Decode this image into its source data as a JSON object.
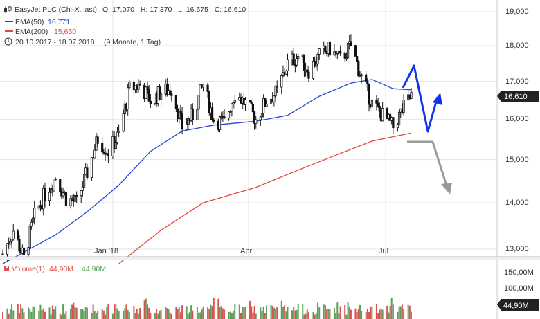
{
  "header": {
    "title": "EasyJet PLC (Chi-X, last)",
    "ohlc": "O: 17,070   H: 17,370   L: 16,575   C: 16,610",
    "ema50_label": "EMA(50)",
    "ema50_value": "16,771",
    "ema200_label": "EMA(200)",
    "ema200_value": "15,650",
    "range": "20.10.2017 - 18.07.2018",
    "period": "(9 Monate, 1 Tag)"
  },
  "price_axis": {
    "ticks": [
      "19,000",
      "18,000",
      "17,000",
      "16,000",
      "15,000",
      "14,000",
      "13,000"
    ],
    "last_badge": "16,610"
  },
  "time_axis": {
    "ticks": [
      "Jan '18",
      "Apr",
      "Jul"
    ]
  },
  "volume": {
    "label": "Volume(1)",
    "value_red": "44,90M",
    "value_green": "44,90M",
    "ticks": [
      "150,00M",
      "100,00M"
    ],
    "last_badge": "44,90M"
  },
  "colors": {
    "candle": "#111111",
    "ema50": "#2545d6",
    "ema200": "#e0473a",
    "arrow_blue": "#1133ee",
    "arrow_gray": "#999999",
    "vol_up": "#5aa05a",
    "vol_down": "#d9534f",
    "badge": "#222222",
    "grid": "#e6e6e6"
  },
  "chart_data": {
    "type": "candlestick",
    "title": "EasyJet PLC (Chi-X, last)",
    "x_range": [
      "2017-10-20",
      "2018-07-18"
    ],
    "ylim": [
      12700,
      19200
    ],
    "y_scale": "log",
    "grid": true,
    "price_path": [
      [
        "2017-10-20",
        12900
      ],
      [
        "2017-10-27",
        13400
      ],
      [
        "2017-11-03",
        12800
      ],
      [
        "2017-11-10",
        13700
      ],
      [
        "2017-11-17",
        14200
      ],
      [
        "2017-11-24",
        14600
      ],
      [
        "2017-12-01",
        14100
      ],
      [
        "2017-12-08",
        14000
      ],
      [
        "2017-12-15",
        14700
      ],
      [
        "2017-12-22",
        15500
      ],
      [
        "2017-12-29",
        15200
      ],
      [
        "2018-01-05",
        15600
      ],
      [
        "2018-01-12",
        16800
      ],
      [
        "2018-01-19",
        16900
      ],
      [
        "2018-01-26",
        16500
      ],
      [
        "2018-02-02",
        16700
      ],
      [
        "2018-02-09",
        16800
      ],
      [
        "2018-02-16",
        15800
      ],
      [
        "2018-02-23",
        16100
      ],
      [
        "2018-03-02",
        16900
      ],
      [
        "2018-03-09",
        16000
      ],
      [
        "2018-03-16",
        15900
      ],
      [
        "2018-03-23",
        16700
      ],
      [
        "2018-03-30",
        16400
      ],
      [
        "2018-04-06",
        16000
      ],
      [
        "2018-04-13",
        16500
      ],
      [
        "2018-04-20",
        16700
      ],
      [
        "2018-04-27",
        17500
      ],
      [
        "2018-05-04",
        17700
      ],
      [
        "2018-05-11",
        17300
      ],
      [
        "2018-05-18",
        17700
      ],
      [
        "2018-05-25",
        17900
      ],
      [
        "2018-06-01",
        17600
      ],
      [
        "2018-06-08",
        18000
      ],
      [
        "2018-06-15",
        17100
      ],
      [
        "2018-06-22",
        16400
      ],
      [
        "2018-06-29",
        16100
      ],
      [
        "2018-07-06",
        15800
      ],
      [
        "2018-07-13",
        16300
      ],
      [
        "2018-07-18",
        16610
      ]
    ],
    "ema50": [
      [
        "2017-10-20",
        12700
      ],
      [
        "2017-11-24",
        13300
      ],
      [
        "2017-12-15",
        13800
      ],
      [
        "2018-01-05",
        14400
      ],
      [
        "2018-01-26",
        15200
      ],
      [
        "2018-02-16",
        15700
      ],
      [
        "2018-03-09",
        15850
      ],
      [
        "2018-04-06",
        15950
      ],
      [
        "2018-04-27",
        16100
      ],
      [
        "2018-05-18",
        16600
      ],
      [
        "2018-06-08",
        16950
      ],
      [
        "2018-06-22",
        17050
      ],
      [
        "2018-07-06",
        16800
      ],
      [
        "2018-07-18",
        16771
      ]
    ],
    "ema200": [
      [
        "2018-01-05",
        12700
      ],
      [
        "2018-02-02",
        13400
      ],
      [
        "2018-03-02",
        14000
      ],
      [
        "2018-04-06",
        14350
      ],
      [
        "2018-05-04",
        14750
      ],
      [
        "2018-06-01",
        15150
      ],
      [
        "2018-06-22",
        15450
      ],
      [
        "2018-07-18",
        15650
      ]
    ]
  }
}
